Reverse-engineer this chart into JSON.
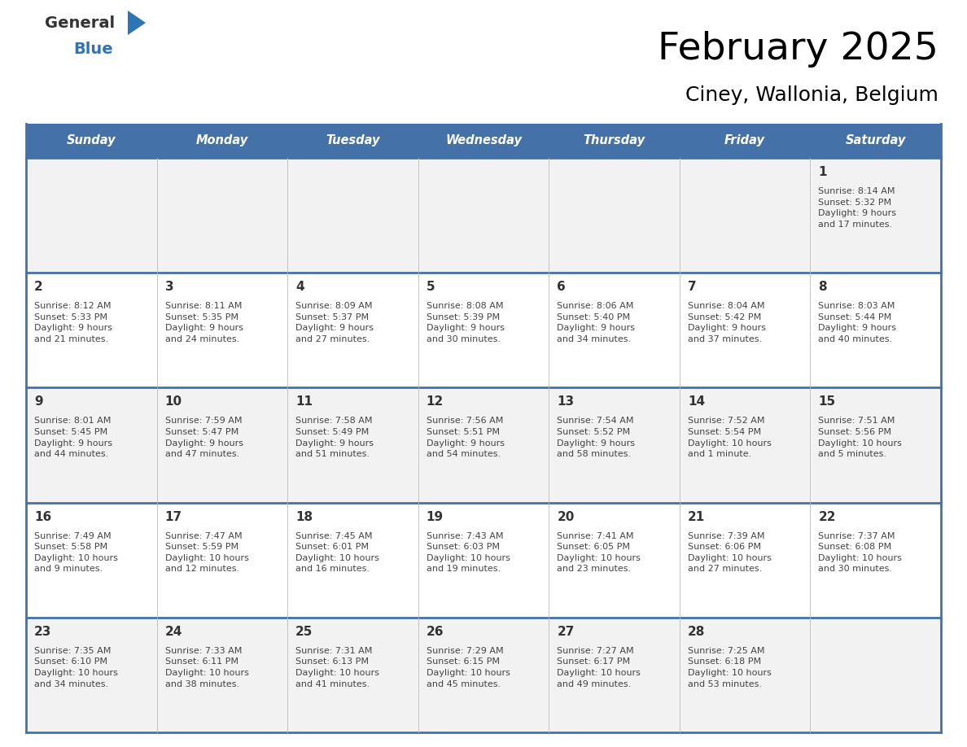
{
  "title": "February 2025",
  "subtitle": "Ciney, Wallonia, Belgium",
  "days_of_week": [
    "Sunday",
    "Monday",
    "Tuesday",
    "Wednesday",
    "Thursday",
    "Friday",
    "Saturday"
  ],
  "header_bg": "#4472A8",
  "header_text": "#FFFFFF",
  "cell_bg_odd": "#F2F2F2",
  "cell_bg_even": "#FFFFFF",
  "border_color": "#4472A8",
  "text_color": "#444444",
  "day_number_color": "#333333",
  "logo_black": "#333333",
  "logo_blue": "#2E75B6",
  "calendar_data": [
    {
      "day": 1,
      "col": 6,
      "row": 0,
      "sunrise": "8:14 AM",
      "sunset": "5:32 PM",
      "daylight": "9 hours\nand 17 minutes."
    },
    {
      "day": 2,
      "col": 0,
      "row": 1,
      "sunrise": "8:12 AM",
      "sunset": "5:33 PM",
      "daylight": "9 hours\nand 21 minutes."
    },
    {
      "day": 3,
      "col": 1,
      "row": 1,
      "sunrise": "8:11 AM",
      "sunset": "5:35 PM",
      "daylight": "9 hours\nand 24 minutes."
    },
    {
      "day": 4,
      "col": 2,
      "row": 1,
      "sunrise": "8:09 AM",
      "sunset": "5:37 PM",
      "daylight": "9 hours\nand 27 minutes."
    },
    {
      "day": 5,
      "col": 3,
      "row": 1,
      "sunrise": "8:08 AM",
      "sunset": "5:39 PM",
      "daylight": "9 hours\nand 30 minutes."
    },
    {
      "day": 6,
      "col": 4,
      "row": 1,
      "sunrise": "8:06 AM",
      "sunset": "5:40 PM",
      "daylight": "9 hours\nand 34 minutes."
    },
    {
      "day": 7,
      "col": 5,
      "row": 1,
      "sunrise": "8:04 AM",
      "sunset": "5:42 PM",
      "daylight": "9 hours\nand 37 minutes."
    },
    {
      "day": 8,
      "col": 6,
      "row": 1,
      "sunrise": "8:03 AM",
      "sunset": "5:44 PM",
      "daylight": "9 hours\nand 40 minutes."
    },
    {
      "day": 9,
      "col": 0,
      "row": 2,
      "sunrise": "8:01 AM",
      "sunset": "5:45 PM",
      "daylight": "9 hours\nand 44 minutes."
    },
    {
      "day": 10,
      "col": 1,
      "row": 2,
      "sunrise": "7:59 AM",
      "sunset": "5:47 PM",
      "daylight": "9 hours\nand 47 minutes."
    },
    {
      "day": 11,
      "col": 2,
      "row": 2,
      "sunrise": "7:58 AM",
      "sunset": "5:49 PM",
      "daylight": "9 hours\nand 51 minutes."
    },
    {
      "day": 12,
      "col": 3,
      "row": 2,
      "sunrise": "7:56 AM",
      "sunset": "5:51 PM",
      "daylight": "9 hours\nand 54 minutes."
    },
    {
      "day": 13,
      "col": 4,
      "row": 2,
      "sunrise": "7:54 AM",
      "sunset": "5:52 PM",
      "daylight": "9 hours\nand 58 minutes."
    },
    {
      "day": 14,
      "col": 5,
      "row": 2,
      "sunrise": "7:52 AM",
      "sunset": "5:54 PM",
      "daylight": "10 hours\nand 1 minute."
    },
    {
      "day": 15,
      "col": 6,
      "row": 2,
      "sunrise": "7:51 AM",
      "sunset": "5:56 PM",
      "daylight": "10 hours\nand 5 minutes."
    },
    {
      "day": 16,
      "col": 0,
      "row": 3,
      "sunrise": "7:49 AM",
      "sunset": "5:58 PM",
      "daylight": "10 hours\nand 9 minutes."
    },
    {
      "day": 17,
      "col": 1,
      "row": 3,
      "sunrise": "7:47 AM",
      "sunset": "5:59 PM",
      "daylight": "10 hours\nand 12 minutes."
    },
    {
      "day": 18,
      "col": 2,
      "row": 3,
      "sunrise": "7:45 AM",
      "sunset": "6:01 PM",
      "daylight": "10 hours\nand 16 minutes."
    },
    {
      "day": 19,
      "col": 3,
      "row": 3,
      "sunrise": "7:43 AM",
      "sunset": "6:03 PM",
      "daylight": "10 hours\nand 19 minutes."
    },
    {
      "day": 20,
      "col": 4,
      "row": 3,
      "sunrise": "7:41 AM",
      "sunset": "6:05 PM",
      "daylight": "10 hours\nand 23 minutes."
    },
    {
      "day": 21,
      "col": 5,
      "row": 3,
      "sunrise": "7:39 AM",
      "sunset": "6:06 PM",
      "daylight": "10 hours\nand 27 minutes."
    },
    {
      "day": 22,
      "col": 6,
      "row": 3,
      "sunrise": "7:37 AM",
      "sunset": "6:08 PM",
      "daylight": "10 hours\nand 30 minutes."
    },
    {
      "day": 23,
      "col": 0,
      "row": 4,
      "sunrise": "7:35 AM",
      "sunset": "6:10 PM",
      "daylight": "10 hours\nand 34 minutes."
    },
    {
      "day": 24,
      "col": 1,
      "row": 4,
      "sunrise": "7:33 AM",
      "sunset": "6:11 PM",
      "daylight": "10 hours\nand 38 minutes."
    },
    {
      "day": 25,
      "col": 2,
      "row": 4,
      "sunrise": "7:31 AM",
      "sunset": "6:13 PM",
      "daylight": "10 hours\nand 41 minutes."
    },
    {
      "day": 26,
      "col": 3,
      "row": 4,
      "sunrise": "7:29 AM",
      "sunset": "6:15 PM",
      "daylight": "10 hours\nand 45 minutes."
    },
    {
      "day": 27,
      "col": 4,
      "row": 4,
      "sunrise": "7:27 AM",
      "sunset": "6:17 PM",
      "daylight": "10 hours\nand 49 minutes."
    },
    {
      "day": 28,
      "col": 5,
      "row": 4,
      "sunrise": "7:25 AM",
      "sunset": "6:18 PM",
      "daylight": "10 hours\nand 53 minutes."
    }
  ]
}
